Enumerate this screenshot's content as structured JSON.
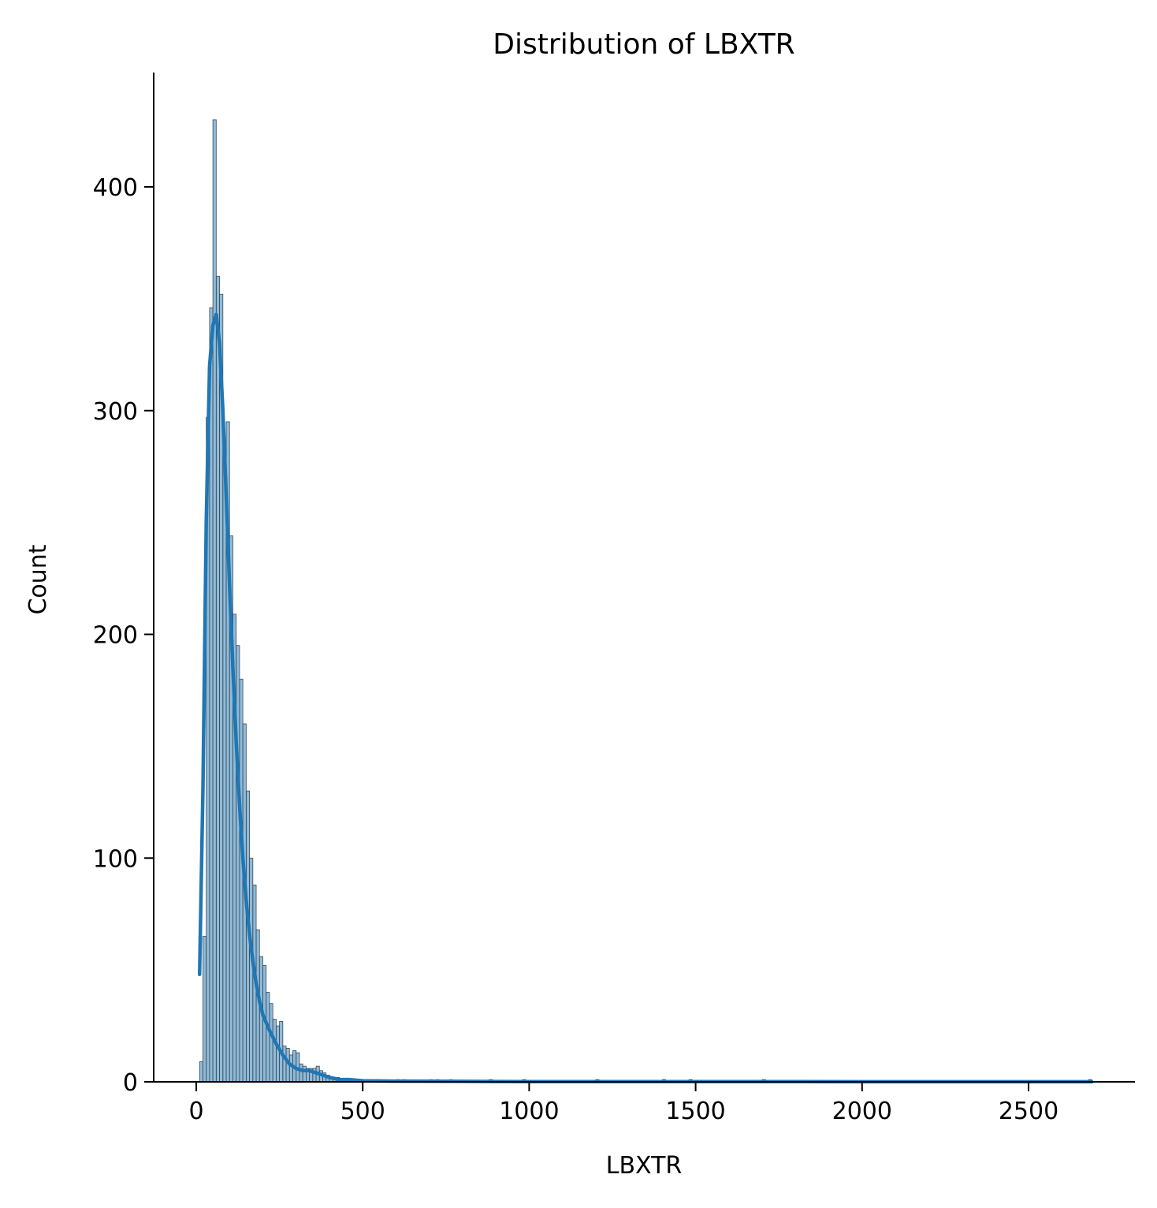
{
  "chart_data": {
    "type": "histogram",
    "title": "Distribution of LBXTR",
    "xlabel": "LBXTR",
    "ylabel": "Count",
    "xlim": [
      -125,
      2820
    ],
    "ylim": [
      0,
      450
    ],
    "xticks": [
      0,
      500,
      1000,
      1500,
      2000,
      2500
    ],
    "yticks": [
      0,
      100,
      200,
      300,
      400
    ],
    "bar_color": "#1f77b4",
    "bar_alpha": 0.5,
    "kde_color": "#1f77b4",
    "grid": false,
    "legend": "none",
    "bin_width": 10,
    "bins": {
      "x": [
        10,
        20,
        30,
        40,
        50,
        60,
        70,
        80,
        90,
        100,
        110,
        120,
        130,
        140,
        150,
        160,
        170,
        180,
        190,
        200,
        210,
        220,
        230,
        240,
        250,
        260,
        270,
        280,
        290,
        300,
        310,
        320,
        330,
        340,
        350,
        360,
        370,
        380,
        390,
        400,
        410,
        420,
        430,
        440,
        450,
        460,
        470,
        480,
        490,
        500,
        520,
        540,
        600,
        620,
        700,
        720,
        760,
        880,
        980,
        1200,
        1400,
        1480,
        1700,
        2680
      ],
      "counts": [
        9,
        65,
        297,
        346,
        430,
        360,
        352,
        283,
        295,
        244,
        209,
        195,
        180,
        160,
        130,
        100,
        88,
        68,
        56,
        52,
        40,
        35,
        28,
        25,
        27,
        16,
        15,
        12,
        14,
        13,
        8,
        7,
        6,
        6,
        6,
        7,
        5,
        4,
        3,
        2,
        2,
        2,
        1,
        1,
        1,
        1,
        1,
        1,
        1,
        1,
        1,
        1,
        1,
        1,
        1,
        1,
        1,
        1,
        1,
        1,
        1,
        1,
        1,
        1
      ]
    },
    "kde": {
      "x": [
        10,
        20,
        30,
        40,
        50,
        60,
        70,
        80,
        90,
        100,
        110,
        120,
        130,
        140,
        150,
        160,
        170,
        180,
        190,
        200,
        220,
        240,
        260,
        280,
        300,
        320,
        340,
        360,
        380,
        400,
        430,
        460,
        500,
        600,
        800,
        1000,
        1500,
        2000,
        2500,
        2690
      ],
      "y": [
        48,
        130,
        250,
        320,
        338,
        343,
        330,
        300,
        262,
        222,
        185,
        152,
        124,
        100,
        81,
        66,
        54,
        44,
        36,
        30,
        23,
        17,
        12,
        8,
        6,
        5,
        5,
        4,
        3,
        2,
        1,
        1,
        0.5,
        0.3,
        0.2,
        0.1,
        0.1,
        0.05,
        0.05,
        0.05
      ]
    }
  }
}
